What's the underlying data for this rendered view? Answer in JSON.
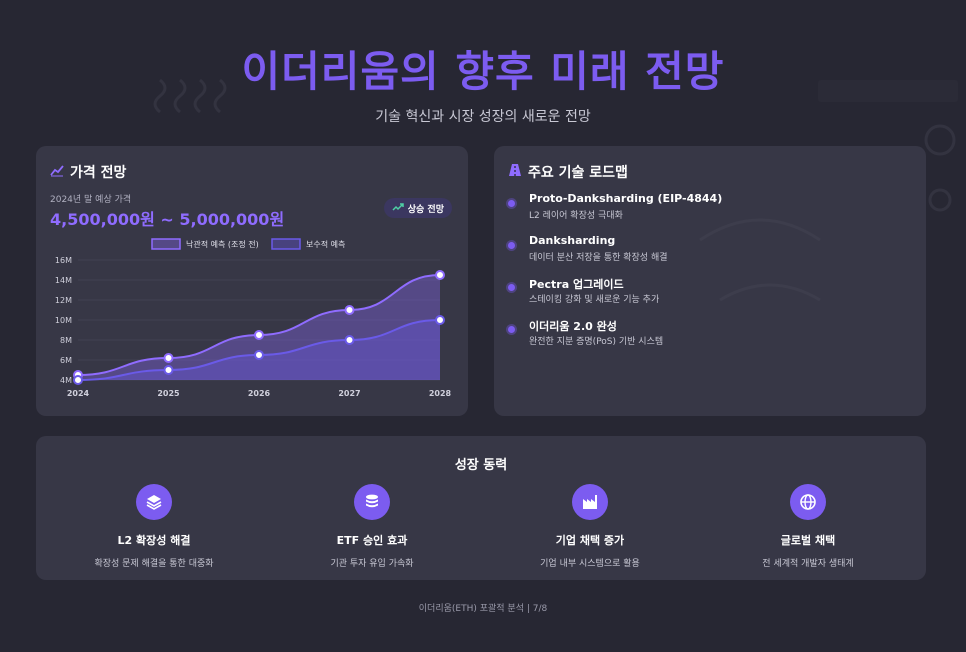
{
  "page": {
    "title": "이더리움의 향후 미래 전망",
    "subtitle": "기술 혁신과 시장 성장의 새로운 전망",
    "footer": "이더리움(ETH) 포괄적 분석 | 7/8"
  },
  "price_card": {
    "title": "가격 전망",
    "icon": "chart-line-icon",
    "sub_label": "2024년 말 예상 가격",
    "range": "4,500,000원 ~ 5,000,000원",
    "badge": "상승 전망",
    "badge_icon": "trend-up-icon"
  },
  "chart_data": {
    "type": "line",
    "x": [
      "2024",
      "2025",
      "2026",
      "2027",
      "2028"
    ],
    "series": [
      {
        "name": "낙관적 예측 (조정 전)",
        "values": [
          4.5,
          6.2,
          8.5,
          11.0,
          14.5
        ],
        "color": "#8f6cff"
      },
      {
        "name": "보수적 예측",
        "values": [
          4.0,
          5.0,
          6.5,
          8.0,
          10.0
        ],
        "color": "#6a5ae8"
      }
    ],
    "yticks": [
      "4M",
      "6M",
      "8M",
      "10M",
      "12M",
      "14M",
      "16M"
    ],
    "ylim": [
      4,
      16
    ],
    "legend_position": "top-center"
  },
  "roadmap_card": {
    "title": "주요 기술 로드맵",
    "icon": "road-icon",
    "items": [
      {
        "title": "Proto-Danksharding (EIP-4844)",
        "desc": "L2 레이어 확장성 극대화"
      },
      {
        "title": "Danksharding",
        "desc": "데이터 분산 저장을 통한 확장성 해결"
      },
      {
        "title": "Pectra 업그레이드",
        "desc": "스테이킹 강화 및 새로운 기능 추가"
      },
      {
        "title": "이더리움 2.0 완성",
        "desc": "완전한 지분 증명(PoS) 기반 시스템"
      }
    ]
  },
  "growth_card": {
    "title": "성장 동력",
    "drivers": [
      {
        "icon": "layers-icon",
        "title": "L2 확장성 해결",
        "desc": "확장성 문제 해결을 통한 대중화"
      },
      {
        "icon": "coins-icon",
        "title": "ETF 승인 효과",
        "desc": "기관 투자 유입 가속화"
      },
      {
        "icon": "factory-icon",
        "title": "기업 채택 증가",
        "desc": "기업 내부 시스템으로 활용"
      },
      {
        "icon": "globe-icon",
        "title": "글로벌 채택",
        "desc": "전 세계적 개발자 생태계"
      }
    ]
  },
  "colors": {
    "accent": "#7c5cf0",
    "background": "#272733",
    "card": "#3e3e4e"
  }
}
